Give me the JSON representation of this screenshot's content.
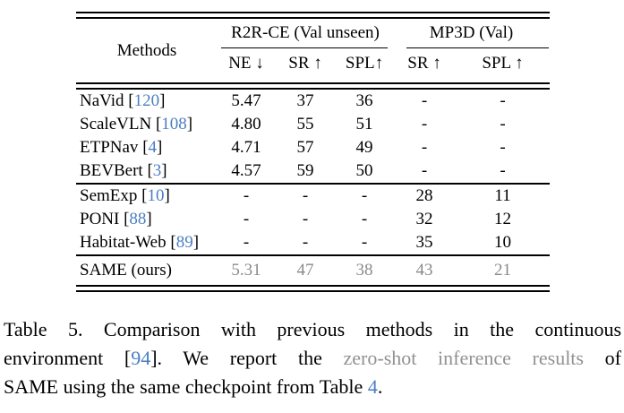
{
  "colors": {
    "citation_blue": "#4a7ec2",
    "muted_gray": "#8a8a8a",
    "caption_gray": "#919191"
  },
  "punct": {
    "open": "[",
    "close": "]"
  },
  "table": {
    "methods_header": "Methods",
    "group_headers": [
      "R2R-CE (Val unseen)",
      "MP3D (Val)"
    ],
    "sub_headers": [
      "NE ↓",
      "SR ↑",
      "SPL↑",
      "SR ↑",
      "SPL ↑"
    ],
    "rows": [
      {
        "name": "NaVid ",
        "cite": "120",
        "v": [
          "5.47",
          "37",
          "36",
          "-",
          "-"
        ]
      },
      {
        "name": "ScaleVLN ",
        "cite": "108",
        "v": [
          "4.80",
          "55",
          "51",
          "-",
          "-"
        ]
      },
      {
        "name": "ETPNav ",
        "cite": "4",
        "v": [
          "4.71",
          "57",
          "49",
          "-",
          "-"
        ]
      },
      {
        "name": "BEVBert ",
        "cite": "3",
        "v": [
          "4.57",
          "59",
          "50",
          "-",
          "-"
        ]
      },
      {
        "name": "SemExp ",
        "cite": "10",
        "v": [
          "-",
          "-",
          "-",
          "28",
          "11"
        ]
      },
      {
        "name": "PONI ",
        "cite": "88",
        "v": [
          "-",
          "-",
          "-",
          "32",
          "12"
        ]
      },
      {
        "name": "Habitat-Web ",
        "cite": "89",
        "v": [
          "-",
          "-",
          "-",
          "35",
          "10"
        ]
      },
      {
        "name": "SAME (ours)",
        "cite": "",
        "v": [
          "5.31",
          "47",
          "38",
          "43",
          "21"
        ]
      }
    ]
  },
  "caption": {
    "line1": "Table 5.  Comparison with previous methods in the continuous",
    "line2_pre": "environment [",
    "cite_env": "94",
    "line2_mid": "].  We report the ",
    "line2_gray": "zero-shot inference results",
    "line2_post": " of",
    "line3_pre": "SAME using the same checkpoint from Table ",
    "ref_table4": "4",
    "line3_post": "."
  },
  "chart_data": {
    "type": "table",
    "title": "Table 5. Comparison with previous methods in the continuous environment",
    "column_groups": [
      {
        "label": "R2R-CE (Val unseen)",
        "columns": [
          "NE ↓",
          "SR ↑",
          "SPL↑"
        ]
      },
      {
        "label": "MP3D (Val)",
        "columns": [
          "SR ↑",
          "SPL ↑"
        ]
      }
    ],
    "columns": [
      "Methods",
      "NE ↓",
      "SR ↑",
      "SPL↑",
      "SR ↑ (MP3D)",
      "SPL ↑ (MP3D)"
    ],
    "rows": [
      [
        "NaVid [120]",
        5.47,
        37,
        36,
        null,
        null
      ],
      [
        "ScaleVLN [108]",
        4.8,
        55,
        51,
        null,
        null
      ],
      [
        "ETPNav [4]",
        4.71,
        57,
        49,
        null,
        null
      ],
      [
        "BEVBert [3]",
        4.57,
        59,
        50,
        null,
        null
      ],
      [
        "SemExp [10]",
        null,
        null,
        null,
        28,
        11
      ],
      [
        "PONI [88]",
        null,
        null,
        null,
        32,
        12
      ],
      [
        "Habitat-Web [89]",
        null,
        null,
        null,
        35,
        10
      ],
      [
        "SAME (ours)",
        5.31,
        47,
        38,
        43,
        21
      ]
    ]
  }
}
